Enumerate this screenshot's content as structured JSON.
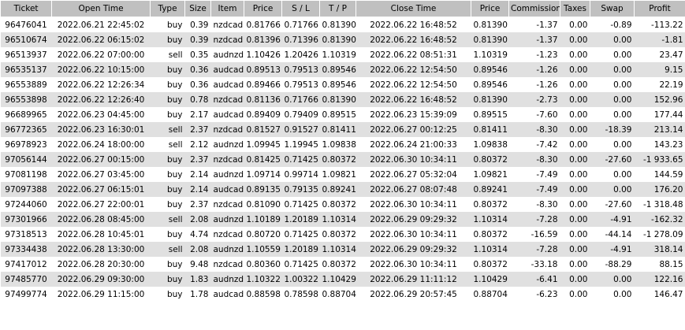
{
  "columns": [
    "Ticket",
    "Open Time",
    "Type",
    "Size",
    "Item",
    "Price",
    "S / L",
    "T / P",
    "Close Time",
    "Price",
    "Commission",
    "Taxes",
    "Swap",
    "Profit"
  ],
  "rows": [
    [
      "96476041",
      "2022.06.21 22:45:02",
      "buy",
      "0.39",
      "nzdcad",
      "0.81766",
      "0.71766",
      "0.81390",
      "2022.06.22 16:48:52",
      "0.81390",
      "-1.37",
      "0.00",
      "-0.89",
      "-113.22"
    ],
    [
      "96510674",
      "2022.06.22 06:15:02",
      "buy",
      "0.39",
      "nzdcad",
      "0.81396",
      "0.71396",
      "0.81390",
      "2022.06.22 16:48:52",
      "0.81390",
      "-1.37",
      "0.00",
      "0.00",
      "-1.81"
    ],
    [
      "96513937",
      "2022.06.22 07:00:00",
      "sell",
      "0.35",
      "audnzd",
      "1.10426",
      "1.20426",
      "1.10319",
      "2022.06.22 08:51:31",
      "1.10319",
      "-1.23",
      "0.00",
      "0.00",
      "23.47"
    ],
    [
      "96535137",
      "2022.06.22 10:15:00",
      "buy",
      "0.36",
      "audcad",
      "0.89513",
      "0.79513",
      "0.89546",
      "2022.06.22 12:54:50",
      "0.89546",
      "-1.26",
      "0.00",
      "0.00",
      "9.15"
    ],
    [
      "96553889",
      "2022.06.22 12:26:34",
      "buy",
      "0.36",
      "audcad",
      "0.89466",
      "0.79513",
      "0.89546",
      "2022.06.22 12:54:50",
      "0.89546",
      "-1.26",
      "0.00",
      "0.00",
      "22.19"
    ],
    [
      "96553898",
      "2022.06.22 12:26:40",
      "buy",
      "0.78",
      "nzdcad",
      "0.81136",
      "0.71766",
      "0.81390",
      "2022.06.22 16:48:52",
      "0.81390",
      "-2.73",
      "0.00",
      "0.00",
      "152.96"
    ],
    [
      "96689965",
      "2022.06.23 04:45:00",
      "buy",
      "2.17",
      "audcad",
      "0.89409",
      "0.79409",
      "0.89515",
      "2022.06.23 15:39:09",
      "0.89515",
      "-7.60",
      "0.00",
      "0.00",
      "177.44"
    ],
    [
      "96772365",
      "2022.06.23 16:30:01",
      "sell",
      "2.37",
      "nzdcad",
      "0.81527",
      "0.91527",
      "0.81411",
      "2022.06.27 00:12:25",
      "0.81411",
      "-8.30",
      "0.00",
      "-18.39",
      "213.14"
    ],
    [
      "96978923",
      "2022.06.24 18:00:00",
      "sell",
      "2.12",
      "audnzd",
      "1.09945",
      "1.19945",
      "1.09838",
      "2022.06.24 21:00:33",
      "1.09838",
      "-7.42",
      "0.00",
      "0.00",
      "143.23"
    ],
    [
      "97056144",
      "2022.06.27 00:15:00",
      "buy",
      "2.37",
      "nzdcad",
      "0.81425",
      "0.71425",
      "0.80372",
      "2022.06.30 10:34:11",
      "0.80372",
      "-8.30",
      "0.00",
      "-27.60",
      "-1 933.65"
    ],
    [
      "97081198",
      "2022.06.27 03:45:00",
      "buy",
      "2.14",
      "audnzd",
      "1.09714",
      "0.99714",
      "1.09821",
      "2022.06.27 05:32:04",
      "1.09821",
      "-7.49",
      "0.00",
      "0.00",
      "144.59"
    ],
    [
      "97097388",
      "2022.06.27 06:15:01",
      "buy",
      "2.14",
      "audcad",
      "0.89135",
      "0.79135",
      "0.89241",
      "2022.06.27 08:07:48",
      "0.89241",
      "-7.49",
      "0.00",
      "0.00",
      "176.20"
    ],
    [
      "97244060",
      "2022.06.27 22:00:01",
      "buy",
      "2.37",
      "nzdcad",
      "0.81090",
      "0.71425",
      "0.80372",
      "2022.06.30 10:34:11",
      "0.80372",
      "-8.30",
      "0.00",
      "-27.60",
      "-1 318.48"
    ],
    [
      "97301966",
      "2022.06.28 08:45:00",
      "sell",
      "2.08",
      "audnzd",
      "1.10189",
      "1.20189",
      "1.10314",
      "2022.06.29 09:29:32",
      "1.10314",
      "-7.28",
      "0.00",
      "-4.91",
      "-162.32"
    ],
    [
      "97318513",
      "2022.06.28 10:45:01",
      "buy",
      "4.74",
      "nzdcad",
      "0.80720",
      "0.71425",
      "0.80372",
      "2022.06.30 10:34:11",
      "0.80372",
      "-16.59",
      "0.00",
      "-44.14",
      "-1 278.09"
    ],
    [
      "97334438",
      "2022.06.28 13:30:00",
      "sell",
      "2.08",
      "audnzd",
      "1.10559",
      "1.20189",
      "1.10314",
      "2022.06.29 09:29:32",
      "1.10314",
      "-7.28",
      "0.00",
      "-4.91",
      "318.14"
    ],
    [
      "97417012",
      "2022.06.28 20:30:00",
      "buy",
      "9.48",
      "nzdcad",
      "0.80360",
      "0.71425",
      "0.80372",
      "2022.06.30 10:34:11",
      "0.80372",
      "-33.18",
      "0.00",
      "-88.29",
      "88.15"
    ],
    [
      "97485770",
      "2022.06.29 09:30:00",
      "buy",
      "1.83",
      "audnzd",
      "1.10322",
      "1.00322",
      "1.10429",
      "2022.06.29 11:11:12",
      "1.10429",
      "-6.41",
      "0.00",
      "0.00",
      "122.16"
    ],
    [
      "97499774",
      "2022.06.29 11:15:00",
      "buy",
      "1.78",
      "audcad",
      "0.88598",
      "0.78598",
      "0.88704",
      "2022.06.29 20:57:45",
      "0.88704",
      "-6.23",
      "0.00",
      "0.00",
      "146.47"
    ]
  ]
}
